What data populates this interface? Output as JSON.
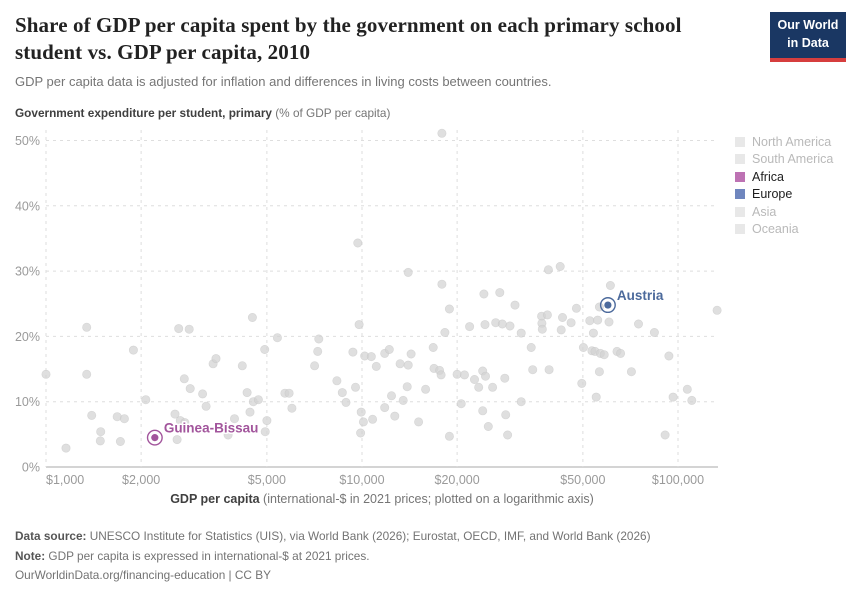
{
  "header": {
    "title": "Share of GDP per capita spent by the government on each primary school student vs. GDP per capita, 2010",
    "subtitle": "GDP per capita data is adjusted for inflation and differences in living costs between countries.",
    "logo_line1": "Our World",
    "logo_line2": "in Data"
  },
  "unit_label": {
    "bold": "Government expenditure per student, primary",
    "rest": " (% of GDP per capita)"
  },
  "legend": {
    "items": [
      {
        "label": "North America",
        "color": "#E8E8E8",
        "active": false
      },
      {
        "label": "South America",
        "color": "#E8E8E8",
        "active": false
      },
      {
        "label": "Africa",
        "color": "#BD72B3",
        "active": true
      },
      {
        "label": "Europe",
        "color": "#6F86BE",
        "active": true
      },
      {
        "label": "Asia",
        "color": "#E8E8E8",
        "active": false
      },
      {
        "label": "Oceania",
        "color": "#E8E8E8",
        "active": false
      }
    ]
  },
  "chart_data": {
    "type": "scatter",
    "x_axis": {
      "scale": "log",
      "title_bold": "GDP per capita",
      "title_rest": " (international-$ in 2021 prices; plotted on a logarithmic axis)",
      "tick_values": [
        1000,
        2000,
        5000,
        10000,
        20000,
        50000,
        100000
      ],
      "tick_labels": [
        "$1,000",
        "$2,000",
        "$5,000",
        "$10,000",
        "$20,000",
        "$50,000",
        "$100,000"
      ],
      "range": [
        1000,
        140000
      ]
    },
    "y_axis": {
      "tick_values": [
        0,
        10,
        20,
        30,
        40,
        50
      ],
      "tick_labels": [
        "0%",
        "10%",
        "20%",
        "30%",
        "40%",
        "50%"
      ],
      "range": [
        0,
        52
      ],
      "grid": true
    },
    "point_color": "#D2D2D2",
    "point_stroke": "#C2C2C2",
    "points": [
      [
        1000,
        14.2
      ],
      [
        1157,
        2.9
      ],
      [
        1345,
        21.4
      ],
      [
        1345,
        14.2
      ],
      [
        1395,
        7.9
      ],
      [
        1485,
        4.0
      ],
      [
        1490,
        5.4
      ],
      [
        1680,
        7.7
      ],
      [
        1720,
        3.9
      ],
      [
        1770,
        7.4
      ],
      [
        1890,
        17.9
      ],
      [
        2070,
        10.3
      ],
      [
        2560,
        8.1
      ],
      [
        2600,
        4.2
      ],
      [
        2630,
        21.2
      ],
      [
        2660,
        7.1
      ],
      [
        2740,
        13.5
      ],
      [
        2750,
        6.8
      ],
      [
        2840,
        21.1
      ],
      [
        2860,
        12.0
      ],
      [
        3130,
        11.2
      ],
      [
        3210,
        9.3
      ],
      [
        3380,
        15.8
      ],
      [
        3450,
        16.6
      ],
      [
        3770,
        4.9
      ],
      [
        3950,
        7.4
      ],
      [
        4180,
        15.5
      ],
      [
        4330,
        11.4
      ],
      [
        4420,
        8.4
      ],
      [
        4500,
        22.9
      ],
      [
        4530,
        10.0
      ],
      [
        4700,
        10.3
      ],
      [
        4920,
        18.0
      ],
      [
        4940,
        5.4
      ],
      [
        5000,
        7.1
      ],
      [
        5400,
        19.8
      ],
      [
        5700,
        11.3
      ],
      [
        5880,
        11.3
      ],
      [
        6000,
        9.0
      ],
      [
        7080,
        15.5
      ],
      [
        7240,
        17.7
      ],
      [
        7300,
        19.6
      ],
      [
        8330,
        13.2
      ],
      [
        8660,
        11.4
      ],
      [
        8900,
        9.9
      ],
      [
        9360,
        17.6
      ],
      [
        9540,
        12.2
      ],
      [
        9700,
        34.3
      ],
      [
        9790,
        21.8
      ],
      [
        9900,
        5.2
      ],
      [
        9940,
        8.4
      ],
      [
        10100,
        6.9
      ],
      [
        10200,
        17.0
      ],
      [
        10700,
        16.9
      ],
      [
        10800,
        7.3
      ],
      [
        11100,
        15.4
      ],
      [
        11800,
        17.4
      ],
      [
        11800,
        9.1
      ],
      [
        12200,
        18.0
      ],
      [
        12400,
        10.9
      ],
      [
        12700,
        7.8
      ],
      [
        13200,
        15.8
      ],
      [
        13500,
        10.2
      ],
      [
        13900,
        12.3
      ],
      [
        14000,
        29.8
      ],
      [
        14000,
        15.6
      ],
      [
        14300,
        17.3
      ],
      [
        15100,
        6.9
      ],
      [
        15900,
        11.9
      ],
      [
        16800,
        18.3
      ],
      [
        16900,
        15.1
      ],
      [
        17600,
        14.8
      ],
      [
        17800,
        14.1
      ],
      [
        17900,
        51.1
      ],
      [
        17900,
        28.0
      ],
      [
        18300,
        20.6
      ],
      [
        18900,
        24.2
      ],
      [
        18900,
        4.7
      ],
      [
        20000,
        14.2
      ],
      [
        20600,
        9.7
      ],
      [
        21100,
        14.1
      ],
      [
        21900,
        21.5
      ],
      [
        22700,
        13.4
      ],
      [
        23400,
        12.2
      ],
      [
        24100,
        14.7
      ],
      [
        24100,
        8.6
      ],
      [
        24300,
        26.5
      ],
      [
        24500,
        21.8
      ],
      [
        24600,
        13.9
      ],
      [
        25100,
        6.2
      ],
      [
        25900,
        12.2
      ],
      [
        26500,
        22.1
      ],
      [
        27300,
        26.7
      ],
      [
        27800,
        21.9
      ],
      [
        28300,
        13.6
      ],
      [
        28500,
        8.0
      ],
      [
        28900,
        4.9
      ],
      [
        29400,
        21.6
      ],
      [
        30500,
        24.8
      ],
      [
        31900,
        20.5
      ],
      [
        31900,
        10.0
      ],
      [
        34300,
        18.3
      ],
      [
        34700,
        14.9
      ],
      [
        37000,
        23.1
      ],
      [
        37100,
        22.0
      ],
      [
        37200,
        21.1
      ],
      [
        38600,
        23.3
      ],
      [
        38900,
        30.2
      ],
      [
        39100,
        14.9
      ],
      [
        42400,
        30.7
      ],
      [
        42700,
        21.0
      ],
      [
        43100,
        22.9
      ],
      [
        45900,
        22.1
      ],
      [
        47700,
        24.3
      ],
      [
        49600,
        12.8
      ],
      [
        50200,
        18.3
      ],
      [
        52600,
        22.4
      ],
      [
        53400,
        17.8
      ],
      [
        54000,
        20.5
      ],
      [
        54600,
        17.7
      ],
      [
        55100,
        10.7
      ],
      [
        55700,
        22.5
      ],
      [
        56400,
        24.5
      ],
      [
        56400,
        14.6
      ],
      [
        56800,
        17.4
      ],
      [
        58400,
        17.2
      ],
      [
        60500,
        22.2
      ],
      [
        61100,
        27.8
      ],
      [
        64100,
        17.7
      ],
      [
        65800,
        17.4
      ],
      [
        71200,
        14.6
      ],
      [
        75000,
        21.9
      ],
      [
        84200,
        20.6
      ],
      [
        91000,
        4.9
      ],
      [
        93600,
        17.0
      ],
      [
        96500,
        10.7
      ],
      [
        107000,
        11.9
      ],
      [
        110600,
        10.2
      ],
      [
        133000,
        24.0
      ]
    ],
    "highlights": [
      {
        "label": "Austria",
        "gdp": 60000,
        "pct": 24.8,
        "color": "#4C6A9C"
      },
      {
        "label": "Guinea-Bissau",
        "gdp": 2210,
        "pct": 4.5,
        "color": "#A2559C"
      }
    ]
  },
  "footer": {
    "source_label": "Data source:",
    "source_text": " UNESCO Institute for Statistics (UIS), via World Bank (2026); Eurostat, OECD, IMF, and World Bank (2026)",
    "note_label": "Note:",
    "note_text": " GDP per capita is expressed in international-$ at 2021 prices.",
    "license_line": "OurWorldinData.org/financing-education | CC BY"
  }
}
